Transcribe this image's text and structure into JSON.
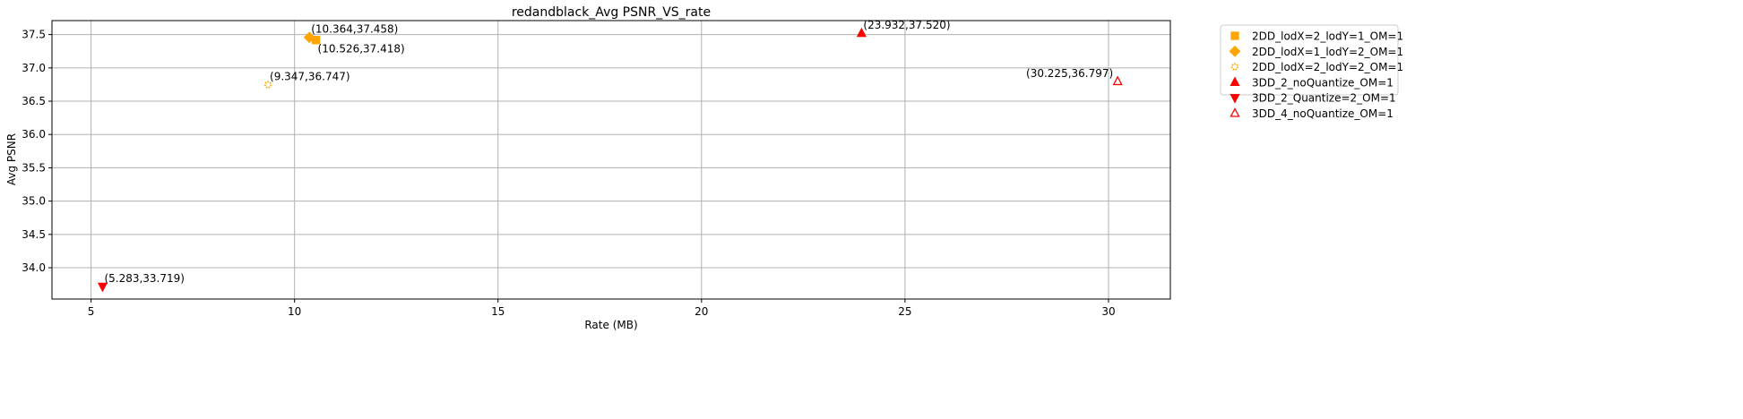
{
  "chart_data": {
    "type": "scatter",
    "title": "redandblack_Avg PSNR_VS_rate",
    "xlabel": "Rate (MB)",
    "ylabel": "Avg PSNR",
    "xlim": [
      4.04,
      31.52
    ],
    "ylim": [
      33.53,
      37.71
    ],
    "xticks": [
      5,
      10,
      15,
      20,
      25,
      30
    ],
    "yticks": [
      34.0,
      34.5,
      35.0,
      35.5,
      36.0,
      36.5,
      37.0,
      37.5
    ],
    "grid": true,
    "legend_position": "outside-top-right",
    "series": [
      {
        "name": "2DD_lodX=2_lodY=1_OM=1",
        "marker": "square",
        "color": "#ffa500",
        "filled": true,
        "points": [
          {
            "x": 10.526,
            "y": 37.418,
            "label": "(10.526,37.418)"
          }
        ]
      },
      {
        "name": "2DD_lodX=1_lodY=2_OM=1",
        "marker": "diamond",
        "color": "#ffa500",
        "filled": true,
        "points": [
          {
            "x": 10.364,
            "y": 37.458,
            "label": "(10.364,37.458)"
          }
        ]
      },
      {
        "name": "2DD_lodX=2_lodY=2_OM=1",
        "marker": "circle",
        "color": "#ffa500",
        "filled": false,
        "points": [
          {
            "x": 9.347,
            "y": 36.747,
            "label": "(9.347,36.747)"
          }
        ]
      },
      {
        "name": "3DD_2_noQuantize_OM=1",
        "marker": "triangle-up",
        "color": "#ff0000",
        "filled": true,
        "points": [
          {
            "x": 23.932,
            "y": 37.52,
            "label": "(23.932,37.520)"
          }
        ]
      },
      {
        "name": "3DD_2_Quantize=2_OM=1",
        "marker": "triangle-down",
        "color": "#ff0000",
        "filled": true,
        "points": [
          {
            "x": 5.283,
            "y": 33.719,
            "label": "(5.283,33.719)"
          }
        ]
      },
      {
        "name": "3DD_4_noQuantize_OM=1",
        "marker": "triangle-up",
        "color": "#ff0000",
        "filled": false,
        "points": [
          {
            "x": 30.225,
            "y": 36.797,
            "label": "(30.225,36.797)"
          }
        ]
      }
    ]
  }
}
